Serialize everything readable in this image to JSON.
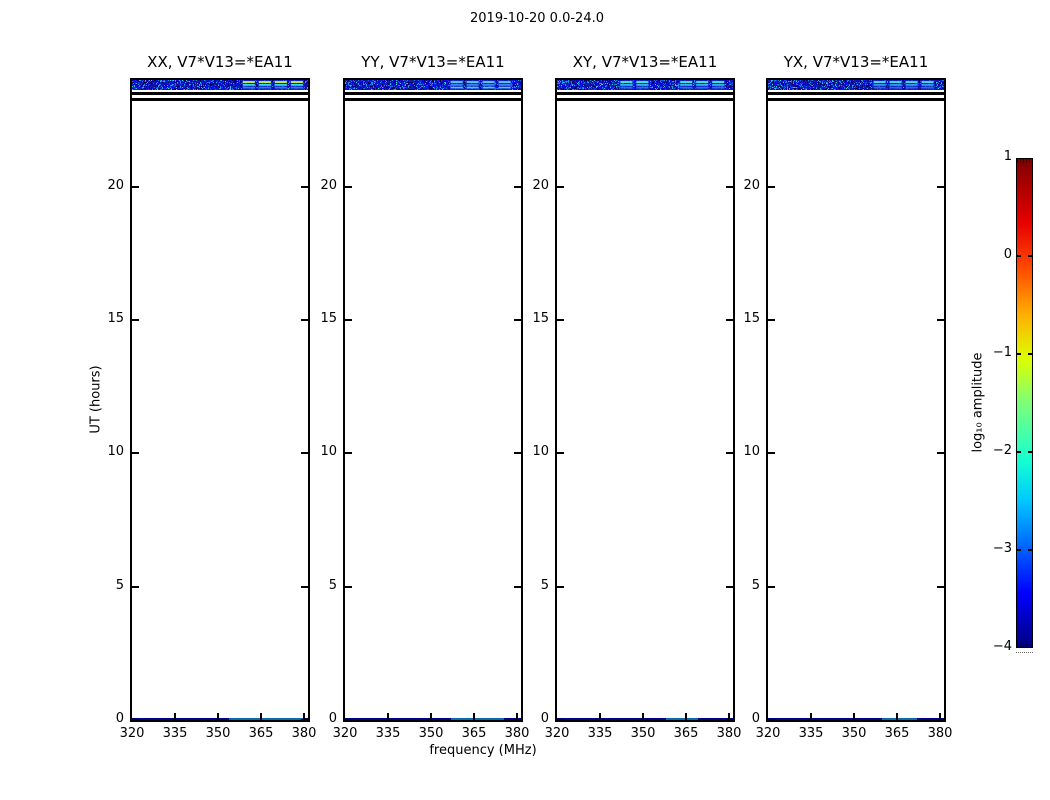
{
  "figure": {
    "title": "2019-10-20 0.0-24.0",
    "xlabel": "frequency (MHz)",
    "ylabel": "UT (hours)"
  },
  "colorbar": {
    "label": "log₁₀ amplitude",
    "ticks": [
      "1",
      "0",
      "−1",
      "−2",
      "−3",
      "−4"
    ],
    "range": [
      -4,
      1
    ],
    "colormap": "jet",
    "gradient_stops": [
      {
        "c": "#00007f",
        "p": 0.0
      },
      {
        "c": "#0000ff",
        "p": 0.11
      },
      {
        "c": "#00c8ff",
        "p": 0.3
      },
      {
        "c": "#14ffd2",
        "p": 0.38
      },
      {
        "c": "#7cff79",
        "p": 0.5
      },
      {
        "c": "#dcff00",
        "p": 0.59
      },
      {
        "c": "#ffb000",
        "p": 0.68
      },
      {
        "c": "#ff4600",
        "p": 0.78
      },
      {
        "c": "#e60000",
        "p": 0.87
      },
      {
        "c": "#7f0000",
        "p": 1.0
      }
    ]
  },
  "chart_data": {
    "type": "heatmap",
    "title": "2019-10-20 0.0-24.0",
    "xlabel": "frequency (MHz)",
    "ylabel": "UT (hours)",
    "x_range_mhz": [
      320,
      382
    ],
    "y_range_hours": [
      0,
      24
    ],
    "x_ticks": [
      320,
      335,
      350,
      365,
      380
    ],
    "y_ticks": [
      0,
      5,
      10,
      15,
      20
    ],
    "x_tick_labels": [
      "320",
      "335",
      "350",
      "365",
      "380"
    ],
    "y_tick_labels": [
      "20",
      "15",
      "10",
      "5",
      "0"
    ],
    "colorbar": {
      "label": "log₁₀ amplitude",
      "range": [
        -4,
        1
      ],
      "colormap": "jet"
    },
    "features": {
      "noise_band_hours": [
        23.62,
        24.0
      ],
      "noise_band_log10_amp": [
        -4.0,
        -3.0
      ],
      "flagged_rows_hours": [
        [
          23.44,
          23.55
        ],
        [
          23.2,
          23.32
        ]
      ],
      "bottom_row_hours": [
        0.0,
        0.08
      ],
      "bottom_row_log10_amp": -3.8,
      "description": "Visibility amplitude dynamic spectra; data only near 23-24 UT: dark-blue noise band (log10 amp ~ -4..-3) with brighter RFI dash groups (log10 amp ~ -2..-1) mostly at 358-381 MHz, two black flagged rows below the band, and a faint navy data row at 0 UT."
    },
    "panels": [
      {
        "pol": "XX",
        "title": "XX, V7*V13=*EA11",
        "rfi_groups": [
          {
            "start": 0.63,
            "end": 0.98,
            "rows": [
              "#c2e24a",
              "#38d2ea",
              "#2f7ae8"
            ]
          }
        ],
        "bottom_segments": [
          [
            0.55,
            0.97
          ]
        ]
      },
      {
        "pol": "YY",
        "title": "YY, V7*V13=*EA11",
        "rfi_groups": [
          {
            "start": 0.6,
            "end": 0.97,
            "rows": [
              "#4ec2f4",
              "#3f7ef2",
              "#46c8f0"
            ]
          }
        ],
        "bottom_segments": [
          [
            0.6,
            0.9
          ]
        ]
      },
      {
        "pol": "XY",
        "title": "XY, V7*V13=*EA11",
        "rfi_groups": [
          {
            "start": 0.36,
            "end": 0.59,
            "rows": [
              "#3ee2d4",
              "#3aaef2",
              "#2f6ce8"
            ]
          },
          {
            "start": 0.7,
            "end": 0.98,
            "rows": [
              "#3ee2d4",
              "#3aaef2",
              "#2f6ce8"
            ]
          }
        ],
        "bottom_segments": [
          [
            0.62,
            0.8
          ]
        ]
      },
      {
        "pol": "YX",
        "title": "YX, V7*V13=*EA11",
        "rfi_groups": [
          {
            "start": 0.6,
            "end": 0.98,
            "rows": [
              "#42d4e4",
              "#3a92f0",
              "#2f62e4"
            ]
          }
        ],
        "bottom_segments": [
          [
            0.65,
            0.85
          ]
        ]
      }
    ]
  }
}
